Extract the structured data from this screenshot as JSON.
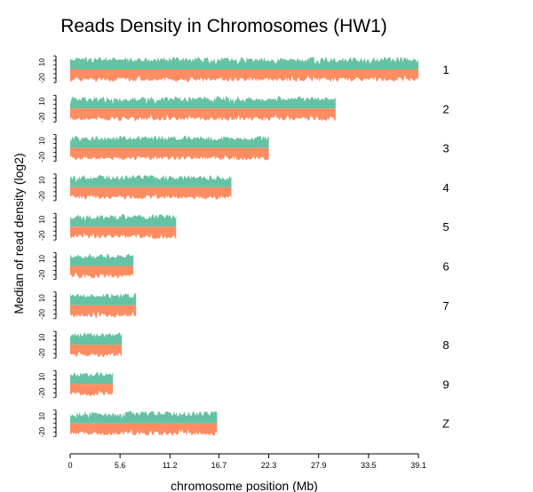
{
  "chart_data": {
    "type": "area",
    "title": "Reads Density in Chromosomes (HW1)",
    "xlabel": "chromosome position (Mb)",
    "ylabel": "Median of read density (log2)",
    "xlim": [
      0,
      39.1
    ],
    "x_ticks": [
      "0",
      "5.6",
      "11.2",
      "16.7",
      "22.3",
      "27.9",
      "33.5",
      "39.1"
    ],
    "y_ticks": [
      "10",
      "-20"
    ],
    "colors": {
      "upper": "#66c2a5",
      "lower": "#fc8d62"
    },
    "chromosomes": [
      {
        "name": "1",
        "length": 39.1
      },
      {
        "name": "2",
        "length": 29.8
      },
      {
        "name": "3",
        "length": 22.3
      },
      {
        "name": "4",
        "length": 18.1
      },
      {
        "name": "5",
        "length": 11.9
      },
      {
        "name": "6",
        "length": 7.1
      },
      {
        "name": "7",
        "length": 7.4
      },
      {
        "name": "8",
        "length": 5.8
      },
      {
        "name": "9",
        "length": 4.8
      },
      {
        "name": "Z",
        "length": 16.5
      }
    ]
  }
}
